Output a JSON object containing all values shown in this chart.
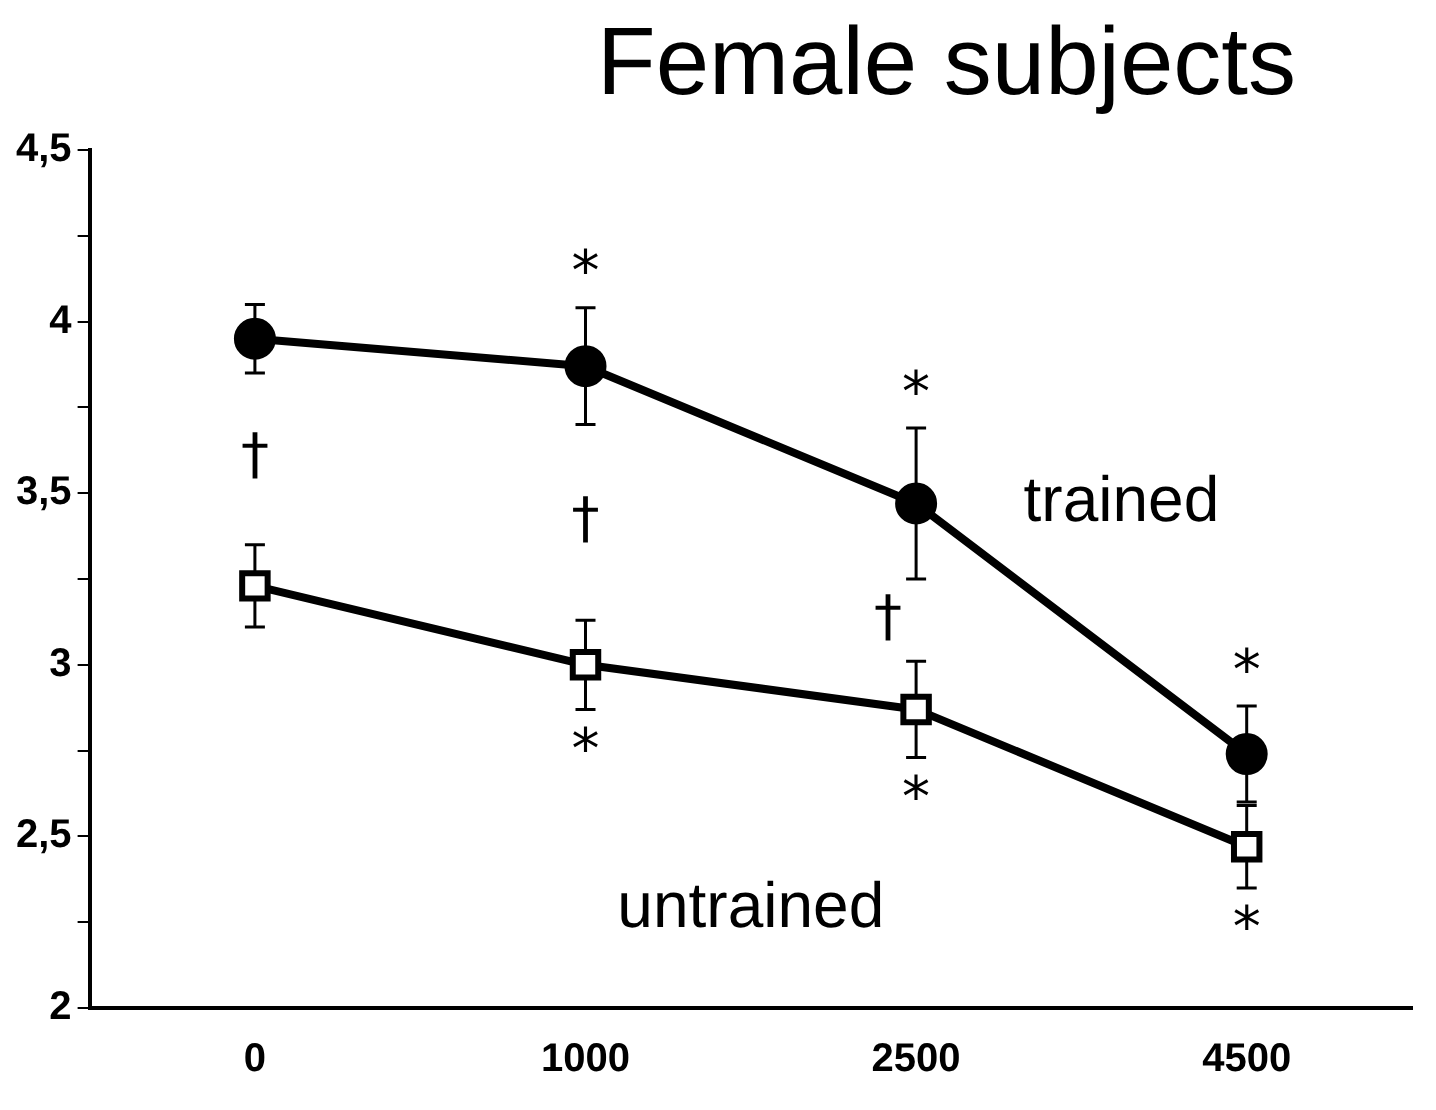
{
  "chart_data": {
    "type": "line",
    "title": "Female subjects",
    "categories": [
      "0",
      "1000",
      "2500",
      "4500"
    ],
    "series": [
      {
        "name": "trained",
        "color": "#000000",
        "marker": "circle",
        "values": [
          3.95,
          3.87,
          3.47,
          2.74
        ],
        "errors": [
          0.1,
          0.17,
          0.22,
          0.14
        ]
      },
      {
        "name": "untrained",
        "color": "#000000",
        "marker": "square",
        "values": [
          3.23,
          3.0,
          2.87,
          2.47
        ],
        "errors": [
          0.12,
          0.13,
          0.14,
          0.12
        ]
      }
    ],
    "ylim": [
      2,
      4.5
    ],
    "yticks": [
      {
        "value": 2,
        "label": "2"
      },
      {
        "value": 2.25,
        "label": null
      },
      {
        "value": 2.5,
        "label": "2,5"
      },
      {
        "value": 2.75,
        "label": null
      },
      {
        "value": 3,
        "label": "3"
      },
      {
        "value": 3.25,
        "label": null
      },
      {
        "value": 3.5,
        "label": "3,5"
      },
      {
        "value": 3.75,
        "label": null
      },
      {
        "value": 4,
        "label": "4"
      },
      {
        "value": 4.25,
        "label": null
      },
      {
        "value": 4.5,
        "label": "4,5"
      }
    ],
    "grid": false,
    "legend": false,
    "annotations": [
      "†",
      "†",
      "†",
      "*",
      "*",
      "*",
      "*",
      "*",
      "*"
    ]
  }
}
